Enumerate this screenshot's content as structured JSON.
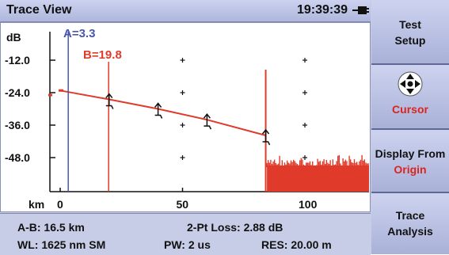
{
  "header": {
    "title": "Trace View",
    "time": "19:39:39"
  },
  "plot": {
    "y_unit": "dB",
    "x_unit": "km",
    "y_ticks": [
      "-12.0",
      "-24.0",
      "-36.0",
      "-48.0"
    ],
    "x_ticks": [
      "0",
      "50",
      "100"
    ],
    "cursor_a_label": "A=3.3",
    "cursor_b_label": "B=19.8"
  },
  "status": {
    "ab_distance": "A-B: 16.5 km",
    "loss": "2-Pt Loss: 2.88 dB",
    "wavelength": "WL: 1625 nm SM",
    "pulse_width": "PW: 2 us",
    "resolution": "RES: 20.00 m"
  },
  "softkeys": {
    "test_setup_line1": "Test",
    "test_setup_line2": "Setup",
    "cursor_label": "Cursor",
    "display_from_line1": "Display From",
    "display_from_line2": "Origin",
    "trace_analysis_line1": "Trace",
    "trace_analysis_line2": "Analysis"
  },
  "icons": {
    "battery": "battery-plug-icon",
    "cursor": "four-way-arrow-icon",
    "event": "event-marker-icon"
  },
  "colors": {
    "trace": "#e03a2a",
    "cursor_a": "#4a57b0",
    "cursor_b": "#e03a2a",
    "accent_red": "#d8261f"
  },
  "chart_data": {
    "type": "line",
    "xlabel": "km",
    "ylabel": "dB",
    "xlim": [
      0,
      125
    ],
    "ylim": [
      -58,
      -5
    ],
    "x_ticks": [
      0,
      50,
      100
    ],
    "y_ticks": [
      -12,
      -24,
      -36,
      -48
    ],
    "series": [
      {
        "values": [
          [
            0,
            -23.2
          ],
          [
            20,
            -26.5
          ],
          [
            40,
            -30
          ],
          [
            60,
            -34
          ],
          [
            84,
            -39.8
          ],
          [
            84.5,
            -47
          ],
          [
            90,
            -48
          ],
          [
            100,
            -48
          ],
          [
            125,
            -48
          ]
        ]
      }
    ],
    "events_km": [
      20,
      40,
      60,
      84
    ],
    "cursor_a_km": 3.3,
    "cursor_b_km": 19.8,
    "grid": false
  }
}
